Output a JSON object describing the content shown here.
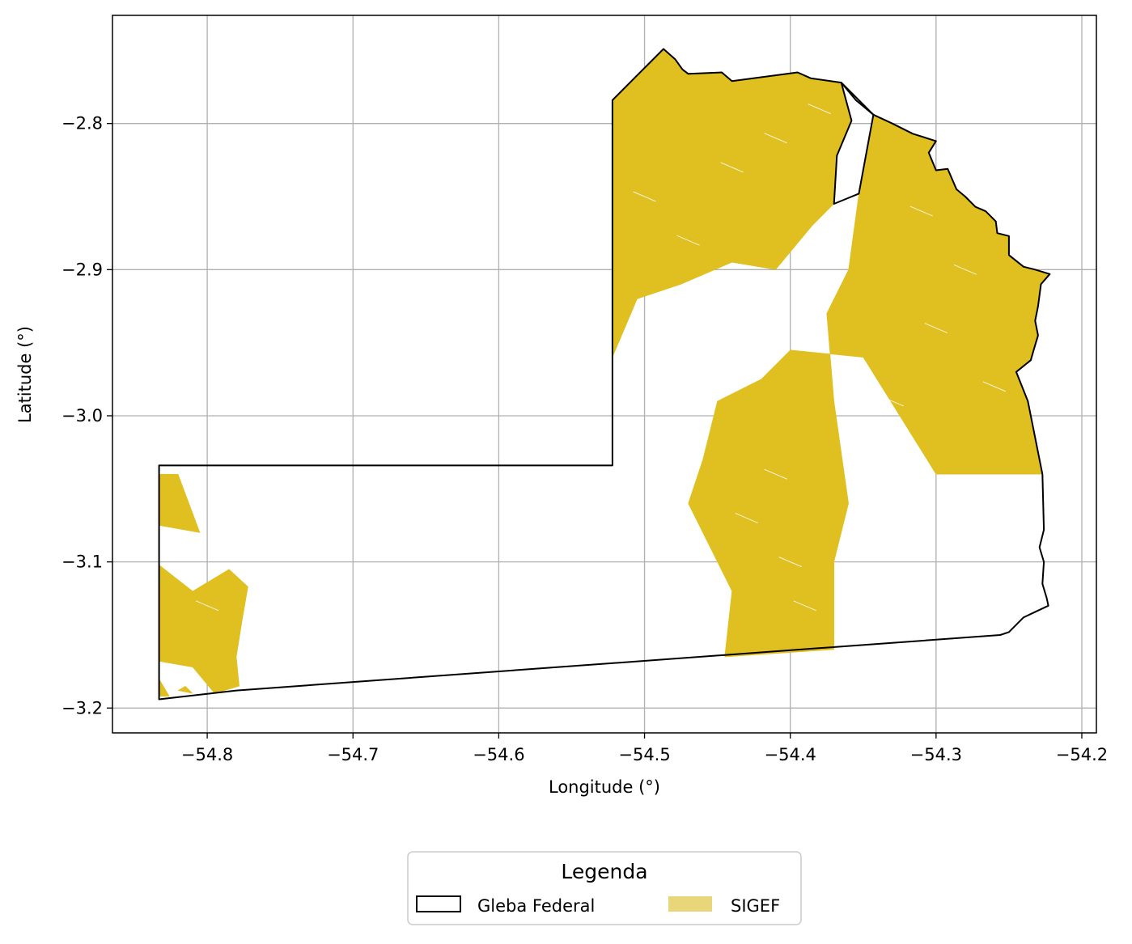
{
  "chart_data": {
    "type": "map",
    "xlabel": "Longitude (°)",
    "ylabel": "Latitude (°)",
    "xlim": [
      -54.865,
      -54.19
    ],
    "ylim": [
      -3.217,
      -2.726
    ],
    "xticks": [
      -54.8,
      -54.7,
      -54.6,
      -54.5,
      -54.4,
      -54.3,
      -54.2
    ],
    "xtick_labels": [
      "−54.8",
      "−54.7",
      "−54.6",
      "−54.5",
      "−54.4",
      "−54.3",
      "−54.2"
    ],
    "yticks": [
      -2.8,
      -2.9,
      -3.0,
      -3.1,
      -3.2
    ],
    "ytick_labels": [
      "−2.8",
      "−2.9",
      "−3.0",
      "−3.1",
      "−3.2"
    ],
    "grid": true,
    "legend": {
      "title": "Legenda",
      "placement": "bottom-center",
      "entries": [
        {
          "label": "Gleba Federal",
          "style": "outline",
          "color": "#000000"
        },
        {
          "label": "SIGEF",
          "style": "fill",
          "color": "#e9d57a"
        }
      ]
    },
    "layers": [
      {
        "name": "Gleba Federal",
        "stroke": "#000000",
        "fill": "none",
        "polygons": [
          [
            [
              -54.833,
              -3.034
            ],
            [
              -54.522,
              -3.034
            ],
            [
              -54.522,
              -2.784
            ],
            [
              -54.505,
              -2.767
            ],
            [
              -54.487,
              -2.749
            ],
            [
              -54.479,
              -2.756
            ],
            [
              -54.474,
              -2.763
            ],
            [
              -54.47,
              -2.766
            ],
            [
              -54.447,
              -2.765
            ],
            [
              -54.44,
              -2.771
            ],
            [
              -54.395,
              -2.765
            ],
            [
              -54.386,
              -2.769
            ],
            [
              -54.365,
              -2.772
            ],
            [
              -54.355,
              -2.784
            ],
            [
              -54.343,
              -2.794
            ],
            [
              -54.33,
              -2.8
            ],
            [
              -54.316,
              -2.807
            ],
            [
              -54.3,
              -2.812
            ],
            [
              -54.305,
              -2.82
            ],
            [
              -54.3,
              -2.832
            ],
            [
              -54.292,
              -2.831
            ],
            [
              -54.286,
              -2.845
            ],
            [
              -54.28,
              -2.85
            ],
            [
              -54.273,
              -2.857
            ],
            [
              -54.266,
              -2.86
            ],
            [
              -54.259,
              -2.867
            ],
            [
              -54.258,
              -2.875
            ],
            [
              -54.25,
              -2.877
            ],
            [
              -54.25,
              -2.89
            ],
            [
              -54.24,
              -2.898
            ],
            [
              -54.232,
              -2.9
            ],
            [
              -54.222,
              -2.903
            ],
            [
              -54.228,
              -2.91
            ],
            [
              -54.23,
              -2.925
            ],
            [
              -54.232,
              -2.935
            ],
            [
              -54.23,
              -2.945
            ],
            [
              -54.233,
              -2.955
            ],
            [
              -54.235,
              -2.962
            ],
            [
              -54.245,
              -2.97
            ],
            [
              -54.237,
              -2.99
            ],
            [
              -54.227,
              -3.04
            ],
            [
              -54.226,
              -3.078
            ],
            [
              -54.229,
              -3.09
            ],
            [
              -54.226,
              -3.1
            ],
            [
              -54.227,
              -3.115
            ],
            [
              -54.224,
              -3.125
            ],
            [
              -54.223,
              -3.13
            ],
            [
              -54.24,
              -3.138
            ],
            [
              -54.25,
              -3.148
            ],
            [
              -54.256,
              -3.15
            ],
            [
              -54.78,
              -3.188
            ],
            [
              -54.833,
              -3.194
            ]
          ],
          [
            [
              -54.365,
              -2.772
            ],
            [
              -54.343,
              -2.794
            ],
            [
              -54.353,
              -2.848
            ],
            [
              -54.37,
              -2.855
            ],
            [
              -54.368,
              -2.822
            ],
            [
              -54.358,
              -2.798
            ]
          ]
        ]
      },
      {
        "name": "SIGEF",
        "fill": "#e0bf20",
        "polygons": [
          [
            [
              -54.522,
              -2.784
            ],
            [
              -54.505,
              -2.767
            ],
            [
              -54.487,
              -2.749
            ],
            [
              -54.479,
              -2.756
            ],
            [
              -54.474,
              -2.763
            ],
            [
              -54.47,
              -2.766
            ],
            [
              -54.447,
              -2.765
            ],
            [
              -54.44,
              -2.771
            ],
            [
              -54.395,
              -2.765
            ],
            [
              -54.386,
              -2.769
            ],
            [
              -54.365,
              -2.772
            ],
            [
              -54.358,
              -2.798
            ],
            [
              -54.368,
              -2.822
            ],
            [
              -54.37,
              -2.855
            ],
            [
              -54.385,
              -2.87
            ],
            [
              -54.41,
              -2.9
            ],
            [
              -54.44,
              -2.895
            ],
            [
              -54.475,
              -2.91
            ],
            [
              -54.505,
              -2.92
            ],
            [
              -54.522,
              -2.96
            ]
          ],
          [
            [
              -54.343,
              -2.794
            ],
            [
              -54.33,
              -2.8
            ],
            [
              -54.316,
              -2.807
            ],
            [
              -54.3,
              -2.812
            ],
            [
              -54.305,
              -2.82
            ],
            [
              -54.3,
              -2.832
            ],
            [
              -54.292,
              -2.831
            ],
            [
              -54.286,
              -2.845
            ],
            [
              -54.28,
              -2.85
            ],
            [
              -54.273,
              -2.857
            ],
            [
              -54.266,
              -2.86
            ],
            [
              -54.259,
              -2.867
            ],
            [
              -54.258,
              -2.875
            ],
            [
              -54.25,
              -2.877
            ],
            [
              -54.25,
              -2.89
            ],
            [
              -54.24,
              -2.898
            ],
            [
              -54.232,
              -2.9
            ],
            [
              -54.222,
              -2.903
            ],
            [
              -54.228,
              -2.91
            ],
            [
              -54.23,
              -2.925
            ],
            [
              -54.232,
              -2.935
            ],
            [
              -54.23,
              -2.945
            ],
            [
              -54.233,
              -2.955
            ],
            [
              -54.235,
              -2.962
            ],
            [
              -54.245,
              -2.97
            ],
            [
              -54.237,
              -2.99
            ],
            [
              -54.227,
              -3.04
            ],
            [
              -54.3,
              -3.04
            ],
            [
              -54.35,
              -2.96
            ],
            [
              -54.4,
              -2.955
            ],
            [
              -54.42,
              -2.975
            ],
            [
              -54.45,
              -2.99
            ],
            [
              -54.46,
              -3.03
            ],
            [
              -54.47,
              -3.06
            ],
            [
              -54.44,
              -3.12
            ],
            [
              -54.445,
              -3.165
            ],
            [
              -54.37,
              -3.16
            ],
            [
              -54.37,
              -3.1
            ],
            [
              -54.36,
              -3.06
            ],
            [
              -54.37,
              -2.99
            ],
            [
              -54.375,
              -2.93
            ],
            [
              -54.36,
              -2.9
            ],
            [
              -54.353,
              -2.848
            ]
          ],
          [
            [
              -54.833,
              -3.04
            ],
            [
              -54.82,
              -3.04
            ],
            [
              -54.805,
              -3.08
            ],
            [
              -54.833,
              -3.075
            ]
          ],
          [
            [
              -54.833,
              -3.102
            ],
            [
              -54.81,
              -3.12
            ],
            [
              -54.785,
              -3.105
            ],
            [
              -54.772,
              -3.117
            ],
            [
              -54.776,
              -3.14
            ],
            [
              -54.78,
              -3.165
            ],
            [
              -54.778,
              -3.185
            ],
            [
              -54.795,
              -3.19
            ],
            [
              -54.81,
              -3.172
            ],
            [
              -54.833,
              -3.168
            ]
          ],
          [
            [
              -54.833,
              -3.18
            ],
            [
              -54.826,
              -3.192
            ],
            [
              -54.833,
              -3.192
            ]
          ],
          [
            [
              -54.82,
              -3.188
            ],
            [
              -54.81,
              -3.19
            ],
            [
              -54.815,
              -3.185
            ]
          ]
        ]
      }
    ]
  }
}
